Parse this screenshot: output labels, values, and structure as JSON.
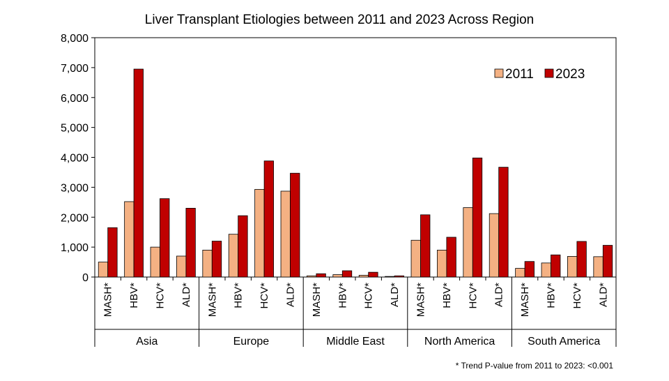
{
  "chart_data": {
    "type": "bar",
    "title": "Liver Transplant Etiologies between 2011 and 2023 Across Region",
    "ylim": [
      0,
      8000
    ],
    "yticks": [
      "0",
      "1,000",
      "2,000",
      "3,000",
      "4,000",
      "5,000",
      "6,000",
      "7,000",
      "8,000"
    ],
    "ytick_values": [
      0,
      1000,
      2000,
      3000,
      4000,
      5000,
      6000,
      7000,
      8000
    ],
    "grid": false,
    "legend": "top-right",
    "colors": {
      "2011": "#f4b183",
      "2023": "#c00000"
    },
    "series_names": [
      "2011",
      "2023"
    ],
    "groups": [
      {
        "region": "Asia",
        "categories": [
          "MASH*",
          "HBV*",
          "HCV*",
          "ALD*"
        ],
        "values_2011": [
          500,
          2520,
          1000,
          700
        ],
        "values_2023": [
          1650,
          6950,
          2620,
          2300
        ]
      },
      {
        "region": "Europe",
        "categories": [
          "MASH*",
          "HBV*",
          "HCV*",
          "ALD*"
        ],
        "values_2011": [
          900,
          1430,
          2930,
          2870
        ],
        "values_2023": [
          1200,
          2050,
          3880,
          3470
        ]
      },
      {
        "region": "Middle East",
        "categories": [
          "MASH*",
          "HBV*",
          "HCV*",
          "ALD*"
        ],
        "values_2011": [
          40,
          80,
          60,
          20
        ],
        "values_2023": [
          110,
          210,
          160,
          40
        ]
      },
      {
        "region": "North America",
        "categories": [
          "MASH*",
          "HBV*",
          "HCV*",
          "ALD*"
        ],
        "values_2011": [
          1230,
          900,
          2320,
          2120
        ],
        "values_2023": [
          2080,
          1330,
          3980,
          3670
        ]
      },
      {
        "region": "South America",
        "categories": [
          "MASH*",
          "HBV*",
          "HCV*",
          "ALD*"
        ],
        "values_2011": [
          290,
          470,
          690,
          680
        ],
        "values_2023": [
          520,
          740,
          1190,
          1060
        ]
      }
    ],
    "footnote": "* Trend P-value from 2011 to 2023: <0.001"
  }
}
